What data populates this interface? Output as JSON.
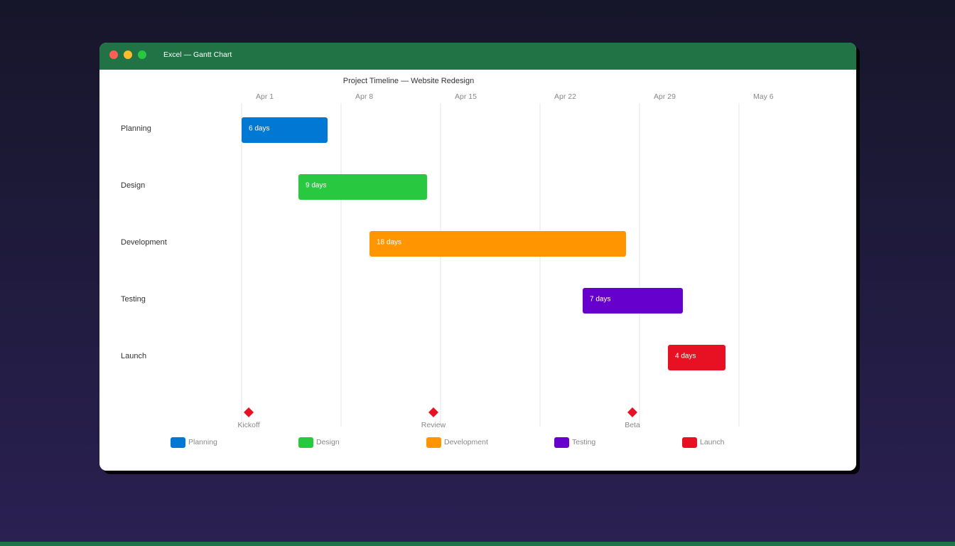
{
  "window_title": "Excel — Gantt Chart",
  "chart_data": {
    "type": "gantt",
    "title": "Project Timeline — Website Redesign",
    "categories": [
      "Planning",
      "Design",
      "Development",
      "Testing",
      "Launch"
    ],
    "starts": [
      0,
      4,
      9,
      24,
      30
    ],
    "values": [
      6,
      9,
      18,
      7,
      4
    ],
    "value_labels": [
      "6 days",
      "9 days",
      "18 days",
      "7 days",
      "4 days"
    ],
    "colors": [
      "#0078d4",
      "#28c840",
      "#ff9500",
      "#6600cc",
      "#e81123"
    ],
    "xlim": [
      0,
      42
    ],
    "xticks": [
      {
        "value": 0,
        "label": "Apr 1"
      },
      {
        "value": 7,
        "label": "Apr 8"
      },
      {
        "value": 14,
        "label": "Apr 15"
      },
      {
        "value": 21,
        "label": "Apr 22"
      },
      {
        "value": 28,
        "label": "Apr 29"
      },
      {
        "value": 35,
        "label": "May 6"
      }
    ],
    "grid": true,
    "milestones": [
      {
        "name": "Kickoff",
        "x": 0.5
      },
      {
        "name": "Review",
        "x": 13.5
      },
      {
        "name": "Beta",
        "x": 27.5
      }
    ],
    "milestone_color": "#e81123"
  }
}
